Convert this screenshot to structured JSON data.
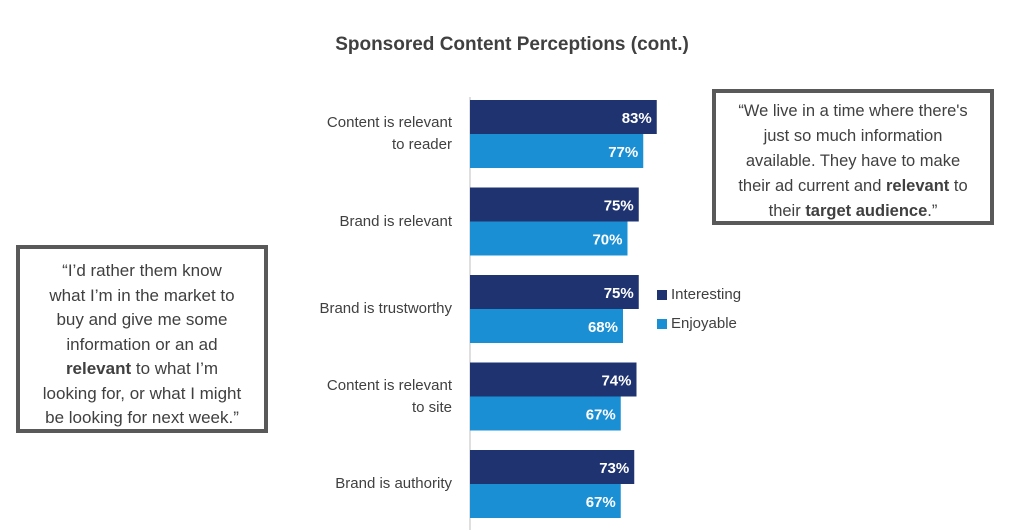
{
  "chart_data": {
    "type": "bar",
    "orientation": "horizontal",
    "title": "Sponsored Content Perceptions (cont.)",
    "categories": [
      [
        "Content is relevant",
        "to reader"
      ],
      [
        "Brand is relevant"
      ],
      [
        "Brand is trustworthy"
      ],
      [
        "Content is relevant",
        "to site"
      ],
      [
        "Brand is authority"
      ]
    ],
    "series": [
      {
        "name": "Interesting",
        "color": "#1F3370",
        "values": [
          83,
          75,
          75,
          74,
          73
        ],
        "labels": [
          "83%",
          "75%",
          "75%",
          "74%",
          "73%"
        ]
      },
      {
        "name": "Enjoyable",
        "color": "#1B8FD4",
        "values": [
          77,
          70,
          68,
          67,
          67
        ],
        "labels": [
          "77%",
          "70%",
          "68%",
          "67%",
          "67%"
        ]
      }
    ],
    "legend_position": "right",
    "grid": false
  },
  "quotes": {
    "left": {
      "lines": [
        [
          {
            "t": "“I’d rather them know"
          }
        ],
        [
          {
            "t": "what I’m in the market to"
          }
        ],
        [
          {
            "t": "buy and give me some"
          }
        ],
        [
          {
            "t": "information or an ad"
          }
        ],
        [
          {
            "t": "relevant",
            "b": true
          },
          {
            "t": " to what I’m"
          }
        ],
        [
          {
            "t": "looking for, or what I might"
          }
        ],
        [
          {
            "t": "be looking for next week.”"
          }
        ]
      ]
    },
    "right": {
      "lines": [
        [
          {
            "t": "“We live in a time where there's"
          }
        ],
        [
          {
            "t": "just so much information"
          }
        ],
        [
          {
            "t": "available.  They have to make"
          }
        ],
        [
          {
            "t": "their ad current and "
          },
          {
            "t": "relevant",
            "b": true
          },
          {
            "t": " to"
          }
        ],
        [
          {
            "t": "their "
          },
          {
            "t": "target audience",
            "b": true
          },
          {
            "t": ".”"
          }
        ]
      ]
    }
  }
}
